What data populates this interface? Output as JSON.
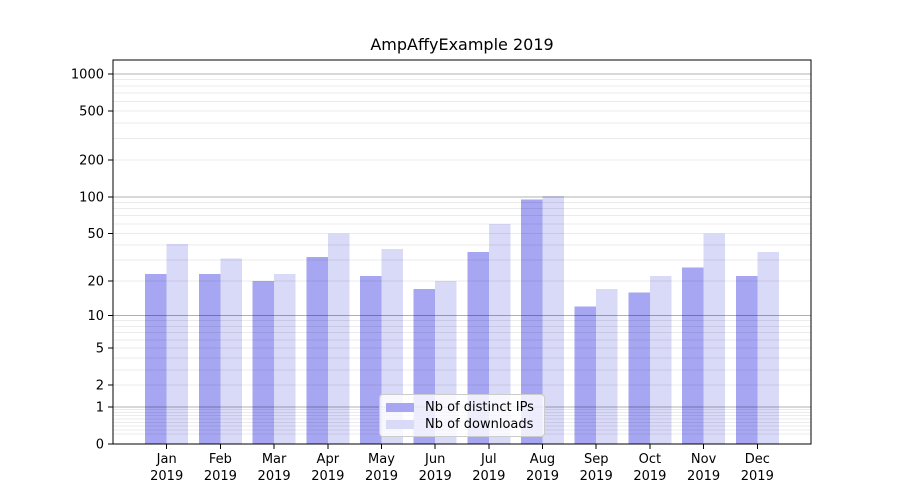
{
  "chart_data": {
    "type": "bar",
    "title": "AmpAffyExample 2019",
    "categories": [
      "Jan",
      "Feb",
      "Mar",
      "Apr",
      "May",
      "Jun",
      "Jul",
      "Aug",
      "Sep",
      "Oct",
      "Nov",
      "Dec"
    ],
    "x_tick_second_line": "2019",
    "series": [
      {
        "name": "Nb of distinct IPs",
        "key": "distinct-ips",
        "color": "#a6a6f2",
        "values": [
          23,
          23,
          20,
          32,
          22,
          17,
          35,
          95,
          12,
          16,
          26,
          22
        ]
      },
      {
        "name": "Nb of downloads",
        "key": "downloads",
        "color": "#d9d9f8",
        "values": [
          41,
          31,
          23,
          50,
          37,
          20,
          60,
          102,
          17,
          22,
          50,
          35
        ]
      }
    ],
    "y_scale": "log1p",
    "y_ticks": [
      0,
      1,
      2,
      5,
      10,
      20,
      50,
      100,
      200,
      500,
      1000
    ],
    "y_minor_decades": [
      0.1,
      1,
      10,
      100
    ],
    "ylim": [
      0,
      1300
    ],
    "grid": {
      "orientation": "horizontal",
      "major_rgba": "rgba(0,0,0,0.31)",
      "minor_rgba": "rgba(0,0,0,0.08)"
    },
    "legend": {
      "position": "lower-center",
      "entries": [
        "Nb of distinct IPs",
        "Nb of downloads"
      ]
    }
  }
}
